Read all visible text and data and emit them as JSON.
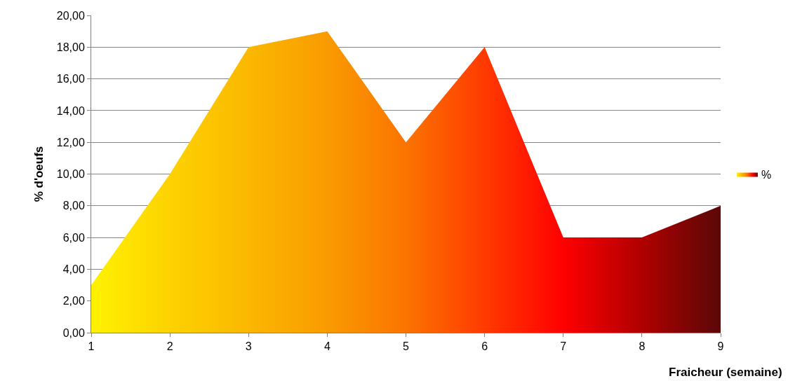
{
  "chart_data": {
    "type": "area",
    "xlabel": "Fraicheur (semaine)",
    "ylabel": "% d'oeufs",
    "x": [
      1,
      2,
      3,
      4,
      5,
      6,
      7,
      8,
      9
    ],
    "series": [
      {
        "name": "%",
        "values": [
          3,
          10,
          18,
          19,
          12,
          18,
          6,
          6,
          8
        ],
        "colors": [
          "#fff200",
          "#fdd200",
          "#fbb800",
          "#f99b00",
          "#fb7400",
          "#ff3a00",
          "#ff0000",
          "#b00000",
          "#5a0808"
        ]
      }
    ],
    "xlim": [
      1,
      9
    ],
    "xticks": [
      1,
      2,
      3,
      4,
      5,
      6,
      7,
      8,
      9
    ],
    "ylim": [
      0,
      20
    ],
    "yticks": [
      {
        "value": 0,
        "label": "0,00"
      },
      {
        "value": 2,
        "label": "2,00"
      },
      {
        "value": 4,
        "label": "4,00"
      },
      {
        "value": 6,
        "label": "6,00"
      },
      {
        "value": 8,
        "label": "8,00"
      },
      {
        "value": 10,
        "label": "10,00"
      },
      {
        "value": 12,
        "label": "12,00"
      },
      {
        "value": 14,
        "label": "14,00"
      },
      {
        "value": 16,
        "label": "16,00"
      },
      {
        "value": 18,
        "label": "18,00"
      },
      {
        "value": 20,
        "label": "20,00"
      }
    ],
    "grid": "y",
    "legend": "right",
    "marker": "none"
  }
}
